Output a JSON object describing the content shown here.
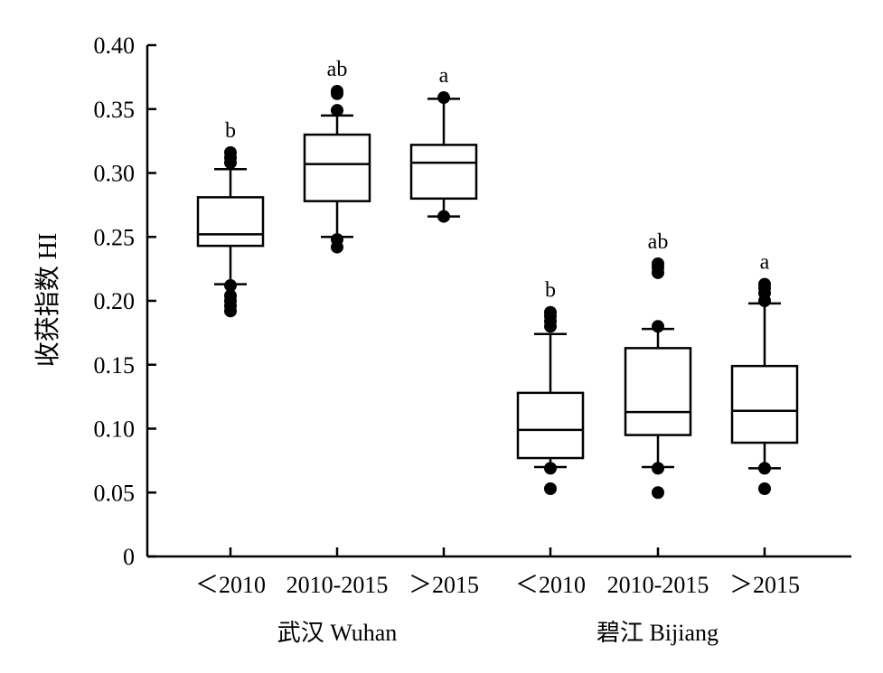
{
  "chart_data": {
    "type": "box",
    "ylabel": "收获指数 HI",
    "ylim": [
      0,
      0.4
    ],
    "yticks": [
      0,
      0.05,
      0.1,
      0.15,
      0.2,
      0.25,
      0.3,
      0.35,
      0.4
    ],
    "ytick_labels": [
      "0",
      "0.05",
      "0.10",
      "0.15",
      "0.20",
      "0.25",
      "0.30",
      "0.35",
      "0.40"
    ],
    "grid": false,
    "groups": [
      {
        "label": "武汉 Wuhan",
        "categories": [
          0,
          1,
          2
        ]
      },
      {
        "label": "碧江 Bijiang",
        "categories": [
          3,
          4,
          5
        ]
      }
    ],
    "categories": [
      "<2010",
      "2010-2015",
      ">2015",
      "<2010",
      "2010-2015",
      ">2015"
    ],
    "category_labels": [
      "＜2010",
      "2010-2015",
      "＞2015",
      "＜2010",
      "2010-2015",
      "＞2015"
    ],
    "boxes": [
      {
        "category": "<2010",
        "group": "武汉 Wuhan",
        "q1": 0.243,
        "median": 0.252,
        "q3": 0.281,
        "whisker_low": 0.213,
        "whisker_high": 0.303,
        "outliers": [
          0.192,
          0.196,
          0.2,
          0.204,
          0.212,
          0.308,
          0.312,
          0.316
        ],
        "letter": "b"
      },
      {
        "category": "2010-2015",
        "group": "武汉 Wuhan",
        "q1": 0.278,
        "median": 0.307,
        "q3": 0.33,
        "whisker_low": 0.25,
        "whisker_high": 0.345,
        "outliers": [
          0.242,
          0.248,
          0.349,
          0.362,
          0.364
        ],
        "letter": "ab"
      },
      {
        "category": ">2015",
        "group": "武汉 Wuhan",
        "q1": 0.28,
        "median": 0.308,
        "q3": 0.322,
        "whisker_low": 0.266,
        "whisker_high": 0.358,
        "outliers": [
          0.266,
          0.359
        ],
        "letter": "a"
      },
      {
        "category": "<2010",
        "group": "碧江 Bijiang",
        "q1": 0.077,
        "median": 0.099,
        "q3": 0.128,
        "whisker_low": 0.07,
        "whisker_high": 0.174,
        "outliers": [
          0.053,
          0.069,
          0.18,
          0.184,
          0.188,
          0.191
        ],
        "letter": "b"
      },
      {
        "category": "2010-2015",
        "group": "碧江 Bijiang",
        "q1": 0.095,
        "median": 0.113,
        "q3": 0.163,
        "whisker_low": 0.07,
        "whisker_high": 0.178,
        "outliers": [
          0.05,
          0.069,
          0.18,
          0.222,
          0.226,
          0.229
        ],
        "letter": "ab"
      },
      {
        "category": ">2015",
        "group": "碧江 Bijiang",
        "q1": 0.089,
        "median": 0.114,
        "q3": 0.149,
        "whisker_low": 0.069,
        "whisker_high": 0.198,
        "outliers": [
          0.053,
          0.069,
          0.2,
          0.206,
          0.21,
          0.213
        ],
        "letter": "a"
      }
    ]
  }
}
